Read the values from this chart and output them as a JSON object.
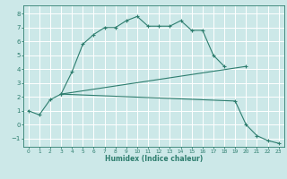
{
  "xlabel": "Humidex (Indice chaleur)",
  "bg_color": "#cce8e8",
  "grid_color": "#ffffff",
  "line_color": "#2d7d6e",
  "xlim": [
    -0.5,
    23.5
  ],
  "ylim": [
    -1.6,
    8.6
  ],
  "xticks": [
    0,
    1,
    2,
    3,
    4,
    5,
    6,
    7,
    8,
    9,
    10,
    11,
    12,
    13,
    14,
    15,
    16,
    17,
    18,
    19,
    20,
    21,
    22,
    23
  ],
  "yticks": [
    -1,
    0,
    1,
    2,
    3,
    4,
    5,
    6,
    7,
    8
  ],
  "curves": [
    {
      "x": [
        0,
        1,
        2,
        3,
        4,
        5,
        6,
        7,
        8,
        9,
        10,
        11,
        12,
        13,
        14,
        15,
        16,
        17,
        18
      ],
      "y": [
        1.0,
        0.7,
        1.8,
        2.2,
        3.8,
        5.8,
        6.5,
        7.0,
        7.0,
        7.5,
        7.8,
        7.1,
        7.1,
        7.1,
        7.5,
        6.8,
        6.8,
        5.0,
        4.2
      ]
    },
    {
      "x": [
        3,
        20
      ],
      "y": [
        2.2,
        4.2
      ]
    },
    {
      "x": [
        3,
        19,
        20,
        21,
        22,
        23
      ],
      "y": [
        2.2,
        1.7,
        0.0,
        -0.8,
        -1.15,
        -1.35
      ]
    }
  ]
}
